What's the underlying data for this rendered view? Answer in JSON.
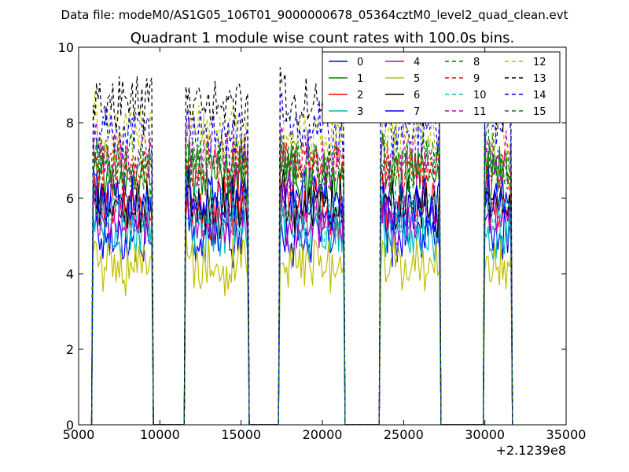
{
  "header": {
    "data_file": "Data file: modeM0/AS1G05_106T01_9000000678_05364cztM0_level2_quad_clean.evt"
  },
  "chart_data": {
    "type": "line",
    "title": "Quadrant 1 module wise count rates with 100.0s bins.",
    "xlabel": "",
    "ylabel": "",
    "xlim": [
      5000,
      35000
    ],
    "ylim": [
      0,
      10
    ],
    "x_ticks": [
      5000,
      10000,
      15000,
      20000,
      25000,
      30000,
      35000
    ],
    "x_tick_labels": [
      "5000",
      "10000",
      "15000",
      "20000",
      "25000",
      "30000",
      "35000"
    ],
    "y_ticks": [
      0,
      2,
      4,
      6,
      8,
      10
    ],
    "y_tick_labels": [
      "0",
      "2",
      "4",
      "6",
      "8",
      "10"
    ],
    "x_offset_label": "+2.1239e8",
    "legend_position": "top-right",
    "segments": [
      {
        "start": 5900,
        "end": 9500
      },
      {
        "start": 11600,
        "end": 15400
      },
      {
        "start": 17400,
        "end": 21300
      },
      {
        "start": 23600,
        "end": 27200
      },
      {
        "start": 30000,
        "end": 31600
      }
    ],
    "bin_seconds": 100,
    "series": [
      {
        "name": "0",
        "color": "#0000ff",
        "dash": "solid",
        "level": 5.0
      },
      {
        "name": "1",
        "color": "#008000",
        "dash": "solid",
        "level": 6.6
      },
      {
        "name": "2",
        "color": "#ff0000",
        "dash": "solid",
        "level": 5.7
      },
      {
        "name": "3",
        "color": "#00bfbf",
        "dash": "solid",
        "level": 5.1
      },
      {
        "name": "4",
        "color": "#bf00bf",
        "dash": "solid",
        "level": 5.5
      },
      {
        "name": "5",
        "color": "#bfbf00",
        "dash": "solid",
        "level": 4.2
      },
      {
        "name": "6",
        "color": "#000000",
        "dash": "solid",
        "level": 5.8
      },
      {
        "name": "7",
        "color": "#0000ff",
        "dash": "solid",
        "level": 5.9
      },
      {
        "name": "8",
        "color": "#008000",
        "dash": "dashed",
        "level": 7.0
      },
      {
        "name": "9",
        "color": "#ff0000",
        "dash": "dashed",
        "level": 6.8
      },
      {
        "name": "10",
        "color": "#00bfbf",
        "dash": "dashed",
        "level": 5.6
      },
      {
        "name": "11",
        "color": "#bf00bf",
        "dash": "dashed",
        "level": 7.0
      },
      {
        "name": "12",
        "color": "#bfbf00",
        "dash": "dashed",
        "level": 7.7
      },
      {
        "name": "13",
        "color": "#000000",
        "dash": "dashed",
        "level": 8.5
      },
      {
        "name": "14",
        "color": "#0000ff",
        "dash": "dashed",
        "level": 7.8
      },
      {
        "name": "15",
        "color": "#008000",
        "dash": "dashed",
        "level": 6.8
      }
    ]
  }
}
